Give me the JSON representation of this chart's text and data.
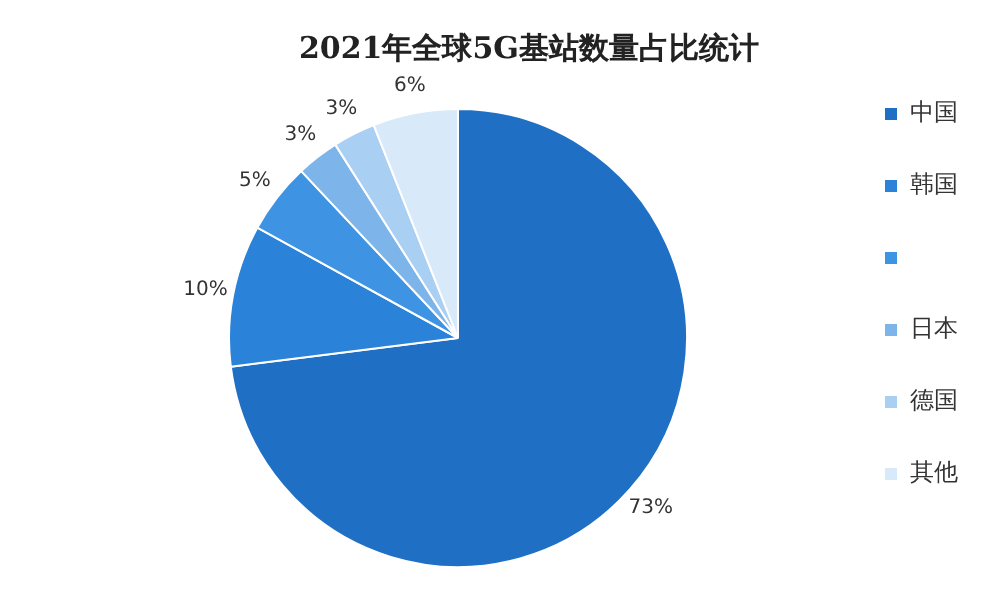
{
  "chart_data": {
    "type": "pie",
    "title": "2021年全球5G基站数量占比统计",
    "categories": [
      "中国",
      "韩国",
      null,
      "日本",
      "德国",
      "其他"
    ],
    "values": [
      73,
      10,
      5,
      3,
      3,
      6
    ],
    "value_labels": [
      "73%",
      "10%",
      "5%",
      "3%",
      "3%",
      "6%"
    ],
    "colors": [
      "#1f6fc5",
      "#2b82d9",
      "#3f93e3",
      "#7db5ea",
      "#a9cff2",
      "#d8e9f9"
    ],
    "legend": "right"
  }
}
